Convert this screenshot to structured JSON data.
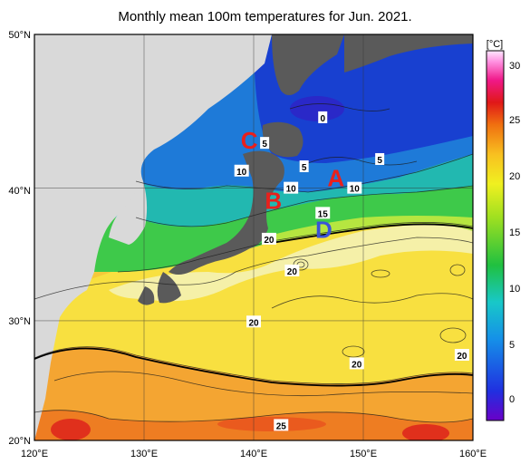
{
  "title": "Monthly mean 100m temperatures for Jun. 2021.",
  "unit_label": "[°C]",
  "x_ticks": [
    "120°E",
    "130°E",
    "140°E",
    "150°E",
    "160°E"
  ],
  "y_ticks": [
    "50°N",
    "40°N",
    "30°N",
    "20°N"
  ],
  "colorbar_ticks": [
    "30",
    "25",
    "20",
    "15",
    "10",
    "5",
    "0"
  ],
  "contour_labels": [
    {
      "text": "0",
      "lon": 146.3,
      "lat": 44.8
    },
    {
      "text": "5",
      "lon": 141.0,
      "lat": 43.1
    },
    {
      "text": "5",
      "lon": 144.6,
      "lat": 41.5
    },
    {
      "text": "5",
      "lon": 151.5,
      "lat": 42.0
    },
    {
      "text": "10",
      "lon": 138.9,
      "lat": 41.2
    },
    {
      "text": "10",
      "lon": 143.4,
      "lat": 40.0
    },
    {
      "text": "10",
      "lon": 149.2,
      "lat": 40.0
    },
    {
      "text": "15",
      "lon": 146.3,
      "lat": 38.2
    },
    {
      "text": "20",
      "lon": 141.4,
      "lat": 36.3
    },
    {
      "text": "20",
      "lon": 143.5,
      "lat": 33.9
    },
    {
      "text": "20",
      "lon": 140.0,
      "lat": 29.9
    },
    {
      "text": "20",
      "lon": 149.4,
      "lat": 26.5
    },
    {
      "text": "20",
      "lon": 159.0,
      "lat": 27.2
    },
    {
      "text": "25",
      "lon": 142.5,
      "lat": 21.3
    }
  ],
  "markers": [
    {
      "text": "A",
      "lon": 147.5,
      "lat": 40.7,
      "color": "#e8201c"
    },
    {
      "text": "B",
      "lon": 141.8,
      "lat": 39.1,
      "color": "#e8201c"
    },
    {
      "text": "C",
      "lon": 139.6,
      "lat": 43.3,
      "color": "#e8201c"
    },
    {
      "text": "D",
      "lon": 146.4,
      "lat": 37.0,
      "color": "#3a52d8"
    }
  ],
  "colors": {
    "land_japan": "#5a5a5a",
    "land_asia": "#d9d9d9",
    "colorbar": [
      "#6a00c8",
      "#2030e0",
      "#1590e8",
      "#18c8c8",
      "#20c040",
      "#a0e020",
      "#f0f020",
      "#f8c020",
      "#f07010",
      "#e01818",
      "#f01888",
      "#ff90e0",
      "#ffe8ff"
    ]
  }
}
